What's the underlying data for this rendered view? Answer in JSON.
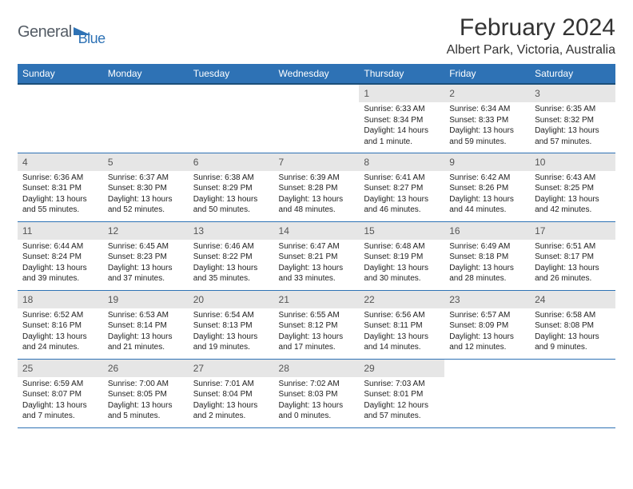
{
  "logo": {
    "word1": "General",
    "word2": "Blue"
  },
  "title": "February 2024",
  "location": "Albert Park, Victoria, Australia",
  "colors": {
    "header_bg": "#2e72b5",
    "header_border": "#1b4f7a",
    "daynum_bg": "#e6e6e6",
    "logo_gray": "#555d66",
    "logo_blue": "#2e72b5"
  },
  "weekdays": [
    "Sunday",
    "Monday",
    "Tuesday",
    "Wednesday",
    "Thursday",
    "Friday",
    "Saturday"
  ],
  "weeks": [
    [
      null,
      null,
      null,
      null,
      {
        "n": "1",
        "sr": "Sunrise: 6:33 AM",
        "ss": "Sunset: 8:34 PM",
        "dl": "Daylight: 14 hours and 1 minute."
      },
      {
        "n": "2",
        "sr": "Sunrise: 6:34 AM",
        "ss": "Sunset: 8:33 PM",
        "dl": "Daylight: 13 hours and 59 minutes."
      },
      {
        "n": "3",
        "sr": "Sunrise: 6:35 AM",
        "ss": "Sunset: 8:32 PM",
        "dl": "Daylight: 13 hours and 57 minutes."
      }
    ],
    [
      {
        "n": "4",
        "sr": "Sunrise: 6:36 AM",
        "ss": "Sunset: 8:31 PM",
        "dl": "Daylight: 13 hours and 55 minutes."
      },
      {
        "n": "5",
        "sr": "Sunrise: 6:37 AM",
        "ss": "Sunset: 8:30 PM",
        "dl": "Daylight: 13 hours and 52 minutes."
      },
      {
        "n": "6",
        "sr": "Sunrise: 6:38 AM",
        "ss": "Sunset: 8:29 PM",
        "dl": "Daylight: 13 hours and 50 minutes."
      },
      {
        "n": "7",
        "sr": "Sunrise: 6:39 AM",
        "ss": "Sunset: 8:28 PM",
        "dl": "Daylight: 13 hours and 48 minutes."
      },
      {
        "n": "8",
        "sr": "Sunrise: 6:41 AM",
        "ss": "Sunset: 8:27 PM",
        "dl": "Daylight: 13 hours and 46 minutes."
      },
      {
        "n": "9",
        "sr": "Sunrise: 6:42 AM",
        "ss": "Sunset: 8:26 PM",
        "dl": "Daylight: 13 hours and 44 minutes."
      },
      {
        "n": "10",
        "sr": "Sunrise: 6:43 AM",
        "ss": "Sunset: 8:25 PM",
        "dl": "Daylight: 13 hours and 42 minutes."
      }
    ],
    [
      {
        "n": "11",
        "sr": "Sunrise: 6:44 AM",
        "ss": "Sunset: 8:24 PM",
        "dl": "Daylight: 13 hours and 39 minutes."
      },
      {
        "n": "12",
        "sr": "Sunrise: 6:45 AM",
        "ss": "Sunset: 8:23 PM",
        "dl": "Daylight: 13 hours and 37 minutes."
      },
      {
        "n": "13",
        "sr": "Sunrise: 6:46 AM",
        "ss": "Sunset: 8:22 PM",
        "dl": "Daylight: 13 hours and 35 minutes."
      },
      {
        "n": "14",
        "sr": "Sunrise: 6:47 AM",
        "ss": "Sunset: 8:21 PM",
        "dl": "Daylight: 13 hours and 33 minutes."
      },
      {
        "n": "15",
        "sr": "Sunrise: 6:48 AM",
        "ss": "Sunset: 8:19 PM",
        "dl": "Daylight: 13 hours and 30 minutes."
      },
      {
        "n": "16",
        "sr": "Sunrise: 6:49 AM",
        "ss": "Sunset: 8:18 PM",
        "dl": "Daylight: 13 hours and 28 minutes."
      },
      {
        "n": "17",
        "sr": "Sunrise: 6:51 AM",
        "ss": "Sunset: 8:17 PM",
        "dl": "Daylight: 13 hours and 26 minutes."
      }
    ],
    [
      {
        "n": "18",
        "sr": "Sunrise: 6:52 AM",
        "ss": "Sunset: 8:16 PM",
        "dl": "Daylight: 13 hours and 24 minutes."
      },
      {
        "n": "19",
        "sr": "Sunrise: 6:53 AM",
        "ss": "Sunset: 8:14 PM",
        "dl": "Daylight: 13 hours and 21 minutes."
      },
      {
        "n": "20",
        "sr": "Sunrise: 6:54 AM",
        "ss": "Sunset: 8:13 PM",
        "dl": "Daylight: 13 hours and 19 minutes."
      },
      {
        "n": "21",
        "sr": "Sunrise: 6:55 AM",
        "ss": "Sunset: 8:12 PM",
        "dl": "Daylight: 13 hours and 17 minutes."
      },
      {
        "n": "22",
        "sr": "Sunrise: 6:56 AM",
        "ss": "Sunset: 8:11 PM",
        "dl": "Daylight: 13 hours and 14 minutes."
      },
      {
        "n": "23",
        "sr": "Sunrise: 6:57 AM",
        "ss": "Sunset: 8:09 PM",
        "dl": "Daylight: 13 hours and 12 minutes."
      },
      {
        "n": "24",
        "sr": "Sunrise: 6:58 AM",
        "ss": "Sunset: 8:08 PM",
        "dl": "Daylight: 13 hours and 9 minutes."
      }
    ],
    [
      {
        "n": "25",
        "sr": "Sunrise: 6:59 AM",
        "ss": "Sunset: 8:07 PM",
        "dl": "Daylight: 13 hours and 7 minutes."
      },
      {
        "n": "26",
        "sr": "Sunrise: 7:00 AM",
        "ss": "Sunset: 8:05 PM",
        "dl": "Daylight: 13 hours and 5 minutes."
      },
      {
        "n": "27",
        "sr": "Sunrise: 7:01 AM",
        "ss": "Sunset: 8:04 PM",
        "dl": "Daylight: 13 hours and 2 minutes."
      },
      {
        "n": "28",
        "sr": "Sunrise: 7:02 AM",
        "ss": "Sunset: 8:03 PM",
        "dl": "Daylight: 13 hours and 0 minutes."
      },
      {
        "n": "29",
        "sr": "Sunrise: 7:03 AM",
        "ss": "Sunset: 8:01 PM",
        "dl": "Daylight: 12 hours and 57 minutes."
      },
      null,
      null
    ]
  ]
}
